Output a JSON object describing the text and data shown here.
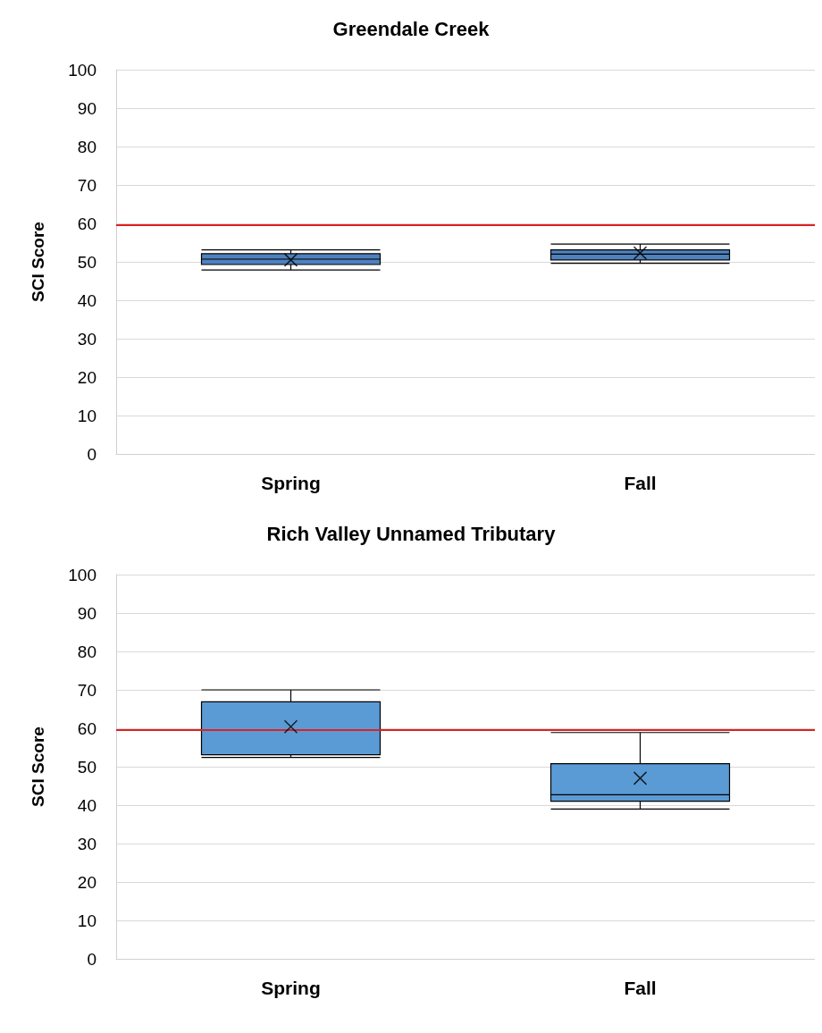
{
  "chart_data": [
    {
      "type": "box",
      "title": "Greendale Creek",
      "ylabel": "SCI Score",
      "categories": [
        "Spring",
        "Fall"
      ],
      "ylim": [
        0,
        100
      ],
      "yticks": [
        0,
        10,
        20,
        30,
        40,
        50,
        60,
        70,
        80,
        90,
        100
      ],
      "grid": "y",
      "color": "#4f81bd",
      "boxes": [
        {
          "low": 47.9,
          "q1": 49.3,
          "median": 50.7,
          "q3": 52.1,
          "high": 53.1,
          "mean": 50.5
        },
        {
          "low": 49.6,
          "q1": 50.5,
          "median": 52,
          "q3": 53.1,
          "high": 54.6,
          "mean": 52.3
        }
      ],
      "ref_lines": [
        {
          "axis": "y",
          "value": 59.5,
          "color": "#e02020"
        }
      ]
    },
    {
      "type": "box",
      "title": "Rich Valley Unnamed Tributary",
      "ylabel": "SCI Score",
      "categories": [
        "Spring",
        "Fall"
      ],
      "ylim": [
        0,
        100
      ],
      "yticks": [
        0,
        10,
        20,
        30,
        40,
        50,
        60,
        70,
        80,
        90,
        100
      ],
      "grid": "y",
      "color": "#5b9bd5",
      "boxes": [
        {
          "low": 52.4,
          "q1": 53.1,
          "median": 59.5,
          "q3": 66.9,
          "high": 70,
          "mean": 60.4
        },
        {
          "low": 39,
          "q1": 41,
          "median": 42.7,
          "q3": 50.8,
          "high": 58.9,
          "mean": 47
        }
      ],
      "ref_lines": [
        {
          "axis": "y",
          "value": 59.5,
          "color": "#e02020"
        }
      ]
    }
  ]
}
